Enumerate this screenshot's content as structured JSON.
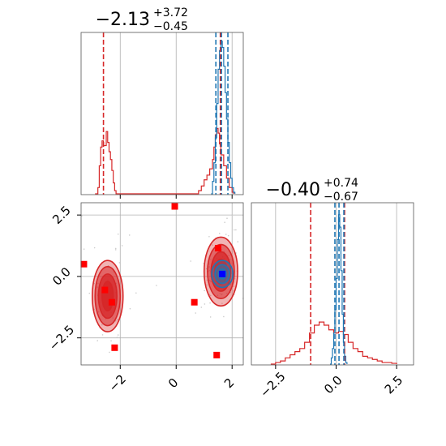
{
  "chart_data": [
    {
      "type": "histogram",
      "panel": "top-left",
      "title": {
        "value": "−2.13",
        "plus": "+3.72",
        "minus": "−0.45"
      },
      "xlim": [
        -3.4,
        2.4
      ],
      "x_ticks": [
        "−2",
        "0",
        "2"
      ],
      "grid": true,
      "series": [
        {
          "color": "#d62728",
          "bins": [
            [
              -2.9,
              0
            ],
            [
              -2.8,
              0.04
            ],
            [
              -2.75,
              0.18
            ],
            [
              -2.7,
              0.3
            ],
            [
              -2.65,
              0.34
            ],
            [
              -2.6,
              0.31
            ],
            [
              -2.5,
              0.4
            ],
            [
              -2.45,
              0.33
            ],
            [
              -2.4,
              0.27
            ],
            [
              -2.35,
              0.22
            ],
            [
              -2.3,
              0.15
            ],
            [
              -2.25,
              0.07
            ],
            [
              -2.2,
              0.02
            ],
            [
              -2.15,
              0
            ],
            [
              0.75,
              0
            ],
            [
              0.8,
              0.02
            ],
            [
              0.9,
              0.05
            ],
            [
              1.0,
              0.09
            ],
            [
              1.1,
              0.12
            ],
            [
              1.2,
              0.16
            ],
            [
              1.3,
              0.22
            ],
            [
              1.35,
              0.3
            ],
            [
              1.4,
              0.38
            ],
            [
              1.45,
              0.42
            ],
            [
              1.5,
              0.39
            ],
            [
              1.55,
              0.32
            ],
            [
              1.6,
              0.25
            ],
            [
              1.7,
              0.18
            ],
            [
              1.8,
              0.1
            ],
            [
              1.9,
              0.04
            ],
            [
              2.0,
              0.01
            ],
            [
              2.05,
              0
            ]
          ],
          "quantiles": [
            -2.6,
            1.58
          ]
        },
        {
          "color": "#1f77b4",
          "bins": [
            [
              1.25,
              0
            ],
            [
              1.3,
              0.08
            ],
            [
              1.35,
              0.2
            ],
            [
              1.4,
              0.36
            ],
            [
              1.45,
              0.58
            ],
            [
              1.5,
              0.8
            ],
            [
              1.55,
              0.92
            ],
            [
              1.6,
              0.98
            ],
            [
              1.65,
              0.94
            ],
            [
              1.7,
              0.82
            ],
            [
              1.75,
              0.65
            ],
            [
              1.8,
              0.48
            ],
            [
              1.85,
              0.33
            ],
            [
              1.9,
              0.2
            ],
            [
              1.95,
              0.1
            ],
            [
              2.0,
              0.04
            ],
            [
              2.05,
              0.01
            ],
            [
              2.1,
              0
            ]
          ],
          "quantiles": [
            1.42,
            1.62,
            1.85
          ]
        }
      ]
    },
    {
      "type": "scatter",
      "panel": "bottom-left",
      "xlim": [
        -3.4,
        2.4
      ],
      "ylim": [
        -3.6,
        3.0
      ],
      "x_ticks": [
        "−2",
        "0",
        "2"
      ],
      "y_ticks": [
        "2.5",
        "0.0",
        "−2.5"
      ],
      "grid": true,
      "square_markers": [
        {
          "x": -3.3,
          "y": 0.5,
          "color": "#ff0000"
        },
        {
          "x": -0.05,
          "y": 2.85,
          "color": "#ff0000"
        },
        {
          "x": -2.55,
          "y": -0.55,
          "color": "#ff0000"
        },
        {
          "x": -2.3,
          "y": -1.05,
          "color": "#ff0000"
        },
        {
          "x": 0.65,
          "y": -1.05,
          "color": "#ff0000"
        },
        {
          "x": -2.2,
          "y": -2.9,
          "color": "#ff0000"
        },
        {
          "x": 1.5,
          "y": 1.15,
          "color": "#ff0000"
        },
        {
          "x": 1.45,
          "y": -3.2,
          "color": "#ff0000"
        },
        {
          "x": 1.65,
          "y": 0.1,
          "color": "#0000ff"
        }
      ],
      "contours": [
        {
          "color": "#d62728",
          "cx": -2.45,
          "cy": -0.8,
          "levels": [
            [
              0.55,
              1.45
            ],
            [
              0.45,
              1.2
            ],
            [
              0.33,
              0.9
            ],
            [
              0.2,
              0.6
            ]
          ]
        },
        {
          "color": "#d62728",
          "cx": 1.6,
          "cy": 0.2,
          "levels": [
            [
              0.6,
              1.4
            ],
            [
              0.48,
              1.1
            ],
            [
              0.35,
              0.8
            ],
            [
              0.22,
              0.5
            ]
          ]
        },
        {
          "color": "#1f77b4",
          "cx": 1.65,
          "cy": 0.1,
          "levels": [
            [
              0.38,
              0.55
            ],
            [
              0.26,
              0.38
            ],
            [
              0.14,
              0.2
            ]
          ]
        }
      ]
    },
    {
      "type": "histogram",
      "panel": "bottom-right",
      "title": {
        "value": "−0.40",
        "plus": "+0.74",
        "minus": "−0.67"
      },
      "xlim": [
        -3.5,
        3.2
      ],
      "x_ticks": [
        "−2.5",
        "0.0",
        "2.5"
      ],
      "grid": true,
      "series": [
        {
          "color": "#d62728",
          "bins": [
            [
              -2.7,
              0
            ],
            [
              -2.5,
              0.01
            ],
            [
              -2.3,
              0.02
            ],
            [
              -2.1,
              0.04
            ],
            [
              -1.9,
              0.06
            ],
            [
              -1.7,
              0.08
            ],
            [
              -1.5,
              0.1
            ],
            [
              -1.3,
              0.14
            ],
            [
              -1.1,
              0.2
            ],
            [
              -0.9,
              0.25
            ],
            [
              -0.7,
              0.27
            ],
            [
              -0.5,
              0.25
            ],
            [
              -0.3,
              0.22
            ],
            [
              -0.1,
              0.2
            ],
            [
              0.1,
              0.21
            ],
            [
              0.3,
              0.19
            ],
            [
              0.5,
              0.14
            ],
            [
              0.7,
              0.1
            ],
            [
              0.9,
              0.08
            ],
            [
              1.1,
              0.05
            ],
            [
              1.3,
              0.04
            ],
            [
              1.5,
              0.03
            ],
            [
              1.7,
              0.02
            ],
            [
              1.9,
              0.01
            ],
            [
              2.1,
              0.01
            ],
            [
              2.3,
              0.005
            ],
            [
              2.5,
              0
            ]
          ],
          "quantiles": [
            -1.05,
            0.35
          ]
        },
        {
          "color": "#1f77b4",
          "bins": [
            [
              -0.25,
              0
            ],
            [
              -0.2,
              0.04
            ],
            [
              -0.15,
              0.1
            ],
            [
              -0.1,
              0.2
            ],
            [
              -0.05,
              0.35
            ],
            [
              0,
              0.55
            ],
            [
              0.05,
              0.8
            ],
            [
              0.1,
              0.96
            ],
            [
              0.15,
              0.88
            ],
            [
              0.2,
              0.6
            ],
            [
              0.25,
              0.32
            ],
            [
              0.3,
              0.14
            ],
            [
              0.35,
              0.05
            ],
            [
              0.4,
              0.01
            ],
            [
              0.45,
              0
            ]
          ],
          "quantiles": [
            -0.05,
            0.12,
            0.32
          ]
        }
      ]
    }
  ]
}
